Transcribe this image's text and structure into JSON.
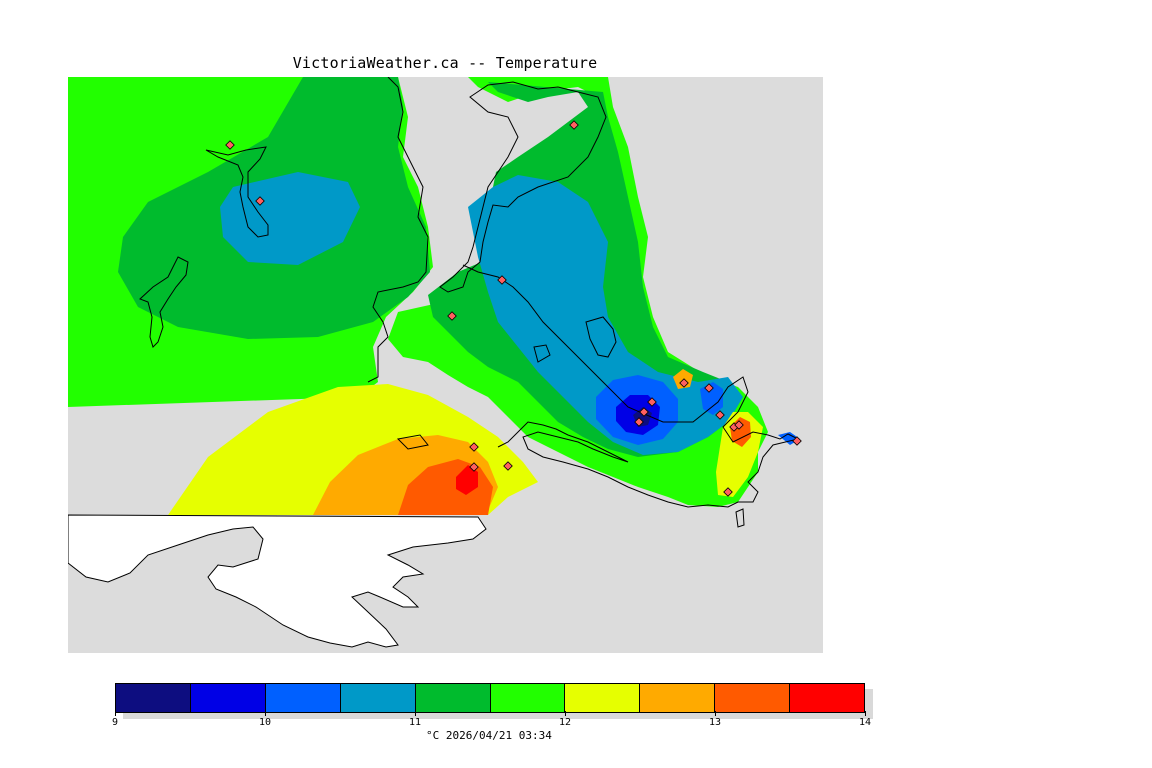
{
  "title": "VictoriaWeather.ca -- Temperature",
  "legend": {
    "colors": [
      "#0d0d80",
      "#0000e6",
      "#0060ff",
      "#0099c8",
      "#00bb2d",
      "#22ff00",
      "#e6ff00",
      "#ffaa00",
      "#ff5a00",
      "#ff0000"
    ],
    "ticks": [
      "9",
      "10",
      "11",
      "12",
      "13",
      "14"
    ],
    "caption": "°C  2026/04/21 03:34"
  },
  "map": {
    "background_color": "#dcdcdc",
    "nodata_color": "#ffffff"
  }
}
